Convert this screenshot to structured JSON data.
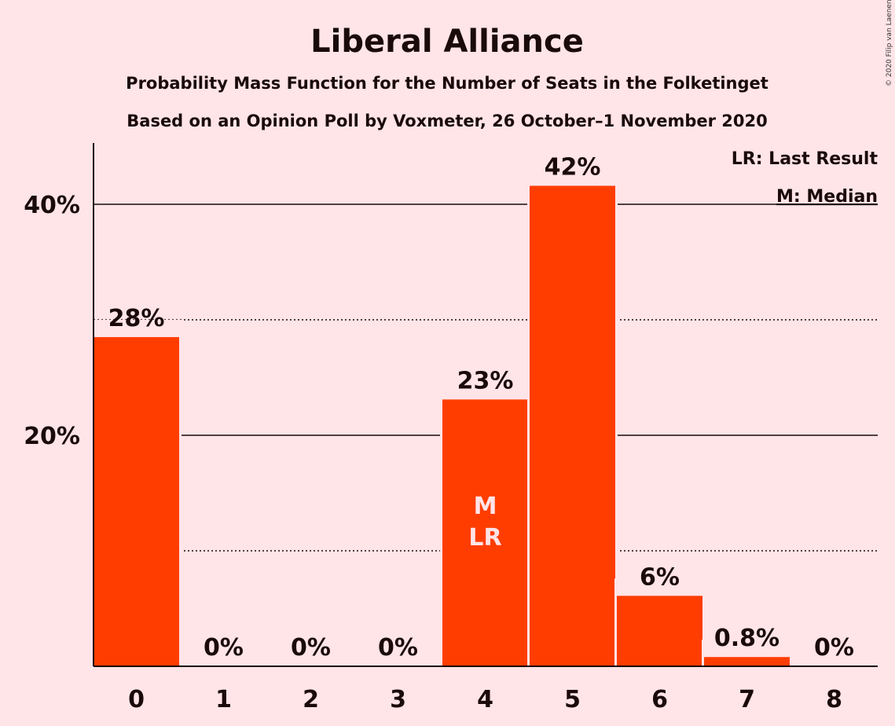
{
  "copyright": "© 2020 Filip van Laenen",
  "chart_data": {
    "type": "bar",
    "title": "Liberal Alliance",
    "subtitle_lines": [
      "Probability Mass Function for the Number of Seats in the Folketinget",
      "Based on an Opinion Poll by Voxmeter, 26 October–1 November 2020"
    ],
    "categories": [
      "0",
      "1",
      "2",
      "3",
      "4",
      "5",
      "6",
      "7",
      "8"
    ],
    "values": [
      28.5,
      0,
      0,
      0,
      23.1,
      41.6,
      6.1,
      0.8,
      0
    ],
    "data_labels": [
      "28%",
      "0%",
      "0%",
      "0%",
      "23%",
      "42%",
      "6%",
      "0.8%",
      "0%"
    ],
    "ylim": [
      0,
      45
    ],
    "yticks": [
      {
        "value": 20,
        "label": "20%"
      },
      {
        "value": 40,
        "label": "40%"
      }
    ],
    "minor_gridlines": [
      10,
      30
    ],
    "bar_color": "#FF3D00",
    "bar_markers": [
      {
        "category": "4",
        "lines": [
          "M",
          "LR"
        ]
      }
    ],
    "legend": {
      "placement": "top-right",
      "entries": [
        "LR: Last Result",
        "M: Median"
      ]
    }
  }
}
